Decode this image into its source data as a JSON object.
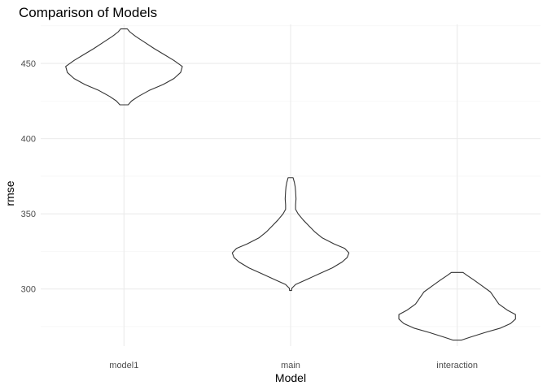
{
  "chart_data": {
    "type": "violin",
    "title": "Comparison of Models",
    "xlabel": "Model",
    "ylabel": "rmse",
    "categories": [
      "model1",
      "main",
      "interaction"
    ],
    "y_ticks": [
      300,
      350,
      400,
      450
    ],
    "ylim": [
      262,
      476
    ],
    "grid": true,
    "fill": "none",
    "outline_color": "#333333",
    "violins": [
      {
        "category": "model1",
        "profile": [
          [
            422.5,
            0.05
          ],
          [
            425,
            0.09
          ],
          [
            428,
            0.17
          ],
          [
            432,
            0.3
          ],
          [
            436,
            0.47
          ],
          [
            440,
            0.6
          ],
          [
            444,
            0.68
          ],
          [
            448,
            0.7
          ],
          [
            452,
            0.6
          ],
          [
            456,
            0.48
          ],
          [
            460,
            0.36
          ],
          [
            464,
            0.25
          ],
          [
            468,
            0.14
          ],
          [
            471,
            0.07
          ],
          [
            473,
            0.04
          ]
        ]
      },
      {
        "category": "main",
        "profile": [
          [
            299,
            0.012
          ],
          [
            300.5,
            0.015
          ],
          [
            303,
            0.06
          ],
          [
            306,
            0.18
          ],
          [
            310,
            0.34
          ],
          [
            314,
            0.5
          ],
          [
            318,
            0.62
          ],
          [
            321,
            0.68
          ],
          [
            324,
            0.7
          ],
          [
            327,
            0.65
          ],
          [
            330,
            0.52
          ],
          [
            334,
            0.38
          ],
          [
            338,
            0.29
          ],
          [
            342,
            0.22
          ],
          [
            346,
            0.15
          ],
          [
            350,
            0.09
          ],
          [
            353,
            0.06
          ],
          [
            356,
            0.06
          ],
          [
            360,
            0.065
          ],
          [
            365,
            0.06
          ],
          [
            368,
            0.055
          ],
          [
            371,
            0.045
          ],
          [
            374,
            0.03
          ]
        ]
      },
      {
        "category": "interaction",
        "profile": [
          [
            266,
            0.05
          ],
          [
            268,
            0.16
          ],
          [
            271,
            0.33
          ],
          [
            274,
            0.52
          ],
          [
            277,
            0.64
          ],
          [
            280,
            0.7
          ],
          [
            283,
            0.7
          ],
          [
            286,
            0.6
          ],
          [
            290,
            0.5
          ],
          [
            294,
            0.45
          ],
          [
            298,
            0.4
          ],
          [
            302,
            0.3
          ],
          [
            306,
            0.2
          ],
          [
            309,
            0.12
          ],
          [
            311,
            0.07
          ]
        ]
      }
    ]
  }
}
